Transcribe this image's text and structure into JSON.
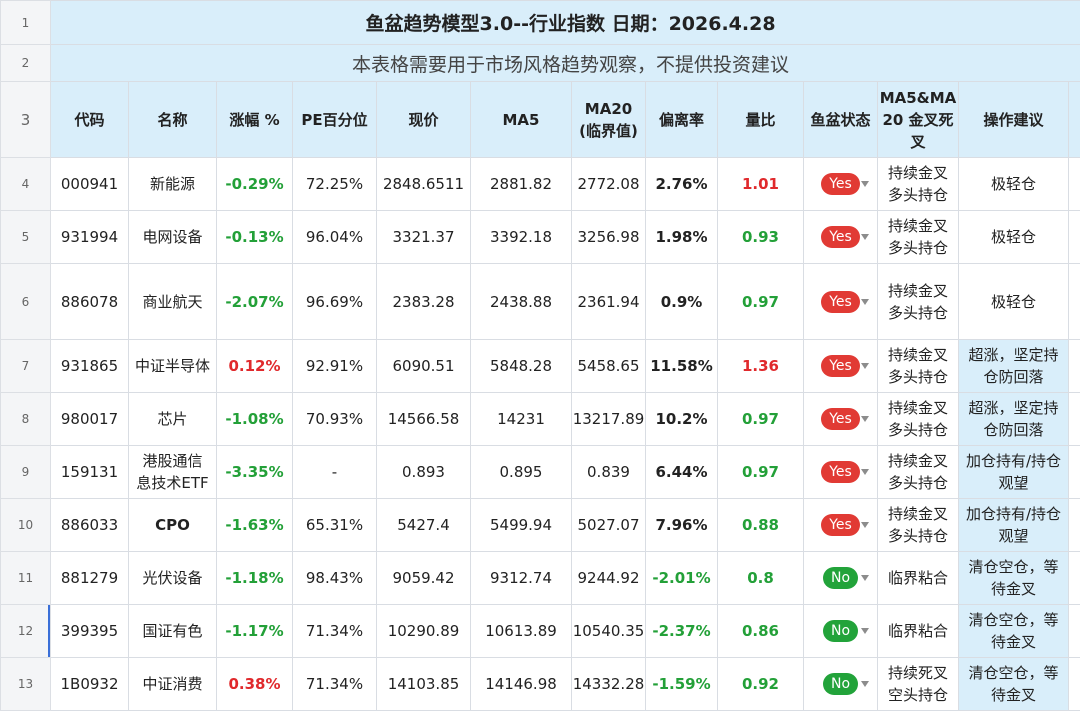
{
  "sheet": {
    "title": "鱼盆趋势模型3.0--行业指数    日期：2026.4.28",
    "subtitle": "本表格需要用于市场风格趋势观察，不提供投资建议",
    "row_numbers": [
      "1",
      "2",
      "3",
      "4",
      "5",
      "6",
      "7",
      "8",
      "9",
      "10",
      "11",
      "12",
      "13"
    ],
    "headers": {
      "code": "代码",
      "name": "名称",
      "change": "涨幅 %",
      "pe": "PE百分位",
      "price": "现价",
      "ma5": "MA5",
      "ma20_line1": "MA20",
      "ma20_line2": "(临界值)",
      "deviation": "偏离率",
      "volume_ratio": "量比",
      "status": "鱼盆状态",
      "cross_line1": "MA5&MA",
      "cross_line2": "20 金叉死",
      "cross_line3": "叉",
      "advice": "操作建议"
    },
    "rows": [
      {
        "code": "000941",
        "name1": "新能源",
        "name2": "",
        "change": "-0.29%",
        "pe": "72.25%",
        "price": "2848.6511",
        "ma5": "2881.82",
        "ma20": "2772.08",
        "deviation": "2.76%",
        "volume_ratio": "1.01",
        "status": "Yes",
        "cross1": "持续金叉",
        "cross2": "多头持仓",
        "advice1": "极轻仓",
        "advice2": ""
      },
      {
        "code": "931994",
        "name1": "电网设备",
        "name2": "",
        "change": "-0.13%",
        "pe": "96.04%",
        "price": "3321.37",
        "ma5": "3392.18",
        "ma20": "3256.98",
        "deviation": "1.98%",
        "volume_ratio": "0.93",
        "status": "Yes",
        "cross1": "持续金叉",
        "cross2": "多头持仓",
        "advice1": "极轻仓",
        "advice2": ""
      },
      {
        "code": "886078",
        "name1": "商业航天",
        "name2": "",
        "change": "-2.07%",
        "pe": "96.69%",
        "price": "2383.28",
        "ma5": "2438.88",
        "ma20": "2361.94",
        "deviation": "0.9%",
        "volume_ratio": "0.97",
        "status": "Yes",
        "cross1": "持续金叉",
        "cross2": "多头持仓",
        "advice1": "极轻仓",
        "advice2": ""
      },
      {
        "code": "931865",
        "name1": "中证半导体",
        "name2": "",
        "change": "0.12%",
        "pe": "92.91%",
        "price": "6090.51",
        "ma5": "5848.28",
        "ma20": "5458.65",
        "deviation": "11.58%",
        "volume_ratio": "1.36",
        "status": "Yes",
        "cross1": "持续金叉",
        "cross2": "多头持仓",
        "advice1": "超涨，坚定持",
        "advice2": "仓防回落"
      },
      {
        "code": "980017",
        "name1": "芯片",
        "name2": "",
        "change": "-1.08%",
        "pe": "70.93%",
        "price": "14566.58",
        "ma5": "14231",
        "ma20": "13217.89",
        "deviation": "10.2%",
        "volume_ratio": "0.97",
        "status": "Yes",
        "cross1": "持续金叉",
        "cross2": "多头持仓",
        "advice1": "超涨，坚定持",
        "advice2": "仓防回落"
      },
      {
        "code": "159131",
        "name1": "港股通信",
        "name2": "息技术ETF",
        "change": "-3.35%",
        "pe": "-",
        "price": "0.893",
        "ma5": "0.895",
        "ma20": "0.839",
        "deviation": "6.44%",
        "volume_ratio": "0.97",
        "status": "Yes",
        "cross1": "持续金叉",
        "cross2": "多头持仓",
        "advice1": "加仓持有/持仓",
        "advice2": "观望"
      },
      {
        "code": "886033",
        "name1": "CPO",
        "name2": "",
        "change": "-1.63%",
        "pe": "65.31%",
        "price": "5427.4",
        "ma5": "5499.94",
        "ma20": "5027.07",
        "deviation": "7.96%",
        "volume_ratio": "0.88",
        "status": "Yes",
        "cross1": "持续金叉",
        "cross2": "多头持仓",
        "advice1": "加仓持有/持仓",
        "advice2": "观望"
      },
      {
        "code": "881279",
        "name1": "光伏设备",
        "name2": "",
        "change": "-1.18%",
        "pe": "98.43%",
        "price": "9059.42",
        "ma5": "9312.74",
        "ma20": "9244.92",
        "deviation": "-2.01%",
        "volume_ratio": "0.8",
        "status": "No",
        "cross1": "临界粘合",
        "cross2": "",
        "advice1": "清仓空仓，等",
        "advice2": "待金叉"
      },
      {
        "code": "399395",
        "name1": "国证有色",
        "name2": "",
        "change": "-1.17%",
        "pe": "71.34%",
        "price": "10290.89",
        "ma5": "10613.89",
        "ma20": "10540.35",
        "deviation": "-2.37%",
        "volume_ratio": "0.86",
        "status": "No",
        "cross1": "临界粘合",
        "cross2": "",
        "advice1": "清仓空仓，等",
        "advice2": "待金叉"
      },
      {
        "code": "1B0932",
        "name1": "中证消费",
        "name2": "",
        "change": "0.38%",
        "pe": "71.34%",
        "price": "14103.85",
        "ma5": "14146.98",
        "ma20": "14332.28",
        "deviation": "-1.59%",
        "volume_ratio": "0.92",
        "status": "No",
        "cross1": "持续死叉",
        "cross2": "空头持仓",
        "advice1": "清仓空仓，等",
        "advice2": "待金叉"
      }
    ]
  },
  "colors": {
    "header_band": "#d9eefa",
    "negative_green": "#23a038",
    "positive_red": "#e0292c",
    "yes_pill": "#e13a34",
    "no_pill": "#22a33a"
  }
}
